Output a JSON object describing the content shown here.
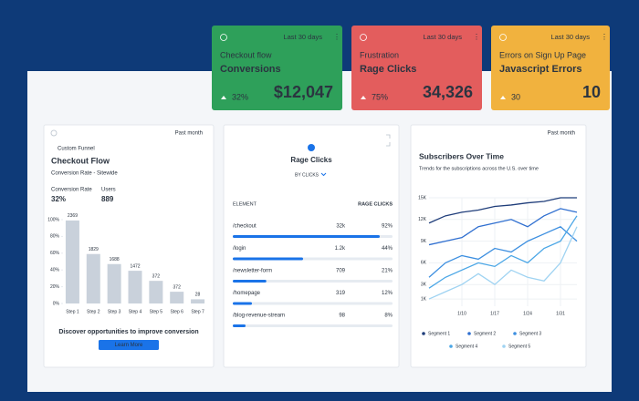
{
  "kpis": [
    {
      "period": "Last 30 days",
      "label": "Checkout flow",
      "title": "Conversions",
      "change": "32%",
      "value": "$12,047"
    },
    {
      "period": "Last 30 days",
      "label": "Frustration",
      "title": "Rage Clicks",
      "change": "75%",
      "value": "34,326"
    },
    {
      "period": "Last 30 days",
      "label": "Errors on Sign Up Page",
      "title": "Javascript Errors",
      "change": "30",
      "value": "10"
    }
  ],
  "funnel": {
    "period": "Past month",
    "tag": "Custom Funnel",
    "title": "Checkout Flow",
    "subtitle": "Conversion Rate - Sitewide",
    "metrics": [
      {
        "label": "Conversion Rate",
        "value": "32%"
      },
      {
        "label": "Users",
        "value": "889"
      }
    ],
    "chart": {
      "type": "bar",
      "categories": [
        "Step 1",
        "Step 2",
        "Step 3",
        "Step 4",
        "Step 5",
        "Step 6",
        "Step 7"
      ],
      "values": [
        99,
        59,
        47,
        39,
        27,
        14,
        5
      ],
      "bar_labels": [
        "2369",
        "1829",
        "1688",
        "1472",
        "372",
        "372",
        "28"
      ],
      "ylim": [
        0,
        100
      ],
      "yticks": [
        {
          "value": 0,
          "label": "0%"
        },
        {
          "value": 20,
          "label": "20%"
        },
        {
          "value": 40,
          "label": "40%"
        },
        {
          "value": 60,
          "label": "60%"
        },
        {
          "value": 80,
          "label": "80%"
        },
        {
          "value": 100,
          "label": "100%"
        }
      ],
      "color": "#c9d1db"
    },
    "cta": "Discover opportunities to improve conversion",
    "button": "Learn More"
  },
  "rage": {
    "title": "Rage Clicks",
    "sort": "BY CLICKS",
    "columns": [
      "ELEMENT",
      "RAGE CLICKS"
    ],
    "xlim": [
      0,
      100
    ],
    "color": "#1a73e8",
    "rows": [
      {
        "element": "/checkout",
        "clicks": "32k",
        "share": 92,
        "share_label": "92%"
      },
      {
        "element": "/login",
        "clicks": "1.2k",
        "share": 44,
        "share_label": "44%"
      },
      {
        "element": "/newsletter-form",
        "clicks": "709",
        "share": 21,
        "share_label": "21%"
      },
      {
        "element": "/homepage",
        "clicks": "319",
        "share": 12,
        "share_label": "12%"
      },
      {
        "element": "/blog-revenue-stream",
        "clicks": "98",
        "share": 8,
        "share_label": "8%"
      }
    ]
  },
  "subscribers": {
    "period": "Past month",
    "title": "Subscribers Over Time",
    "subtitle": "Trends for the subscriptions across the U.S. over time",
    "chart": {
      "type": "line",
      "categories": [
        null,
        null,
        "1/10",
        null,
        "1/17",
        null,
        "1/24",
        null,
        "1/31",
        null
      ],
      "ylim": [
        0,
        15000
      ],
      "yticks": [
        {
          "value": 1000,
          "label": "1K"
        },
        {
          "value": 3000,
          "label": "3K"
        },
        {
          "value": 6000,
          "label": "6K"
        },
        {
          "value": 9000,
          "label": "9K"
        },
        {
          "value": 12000,
          "label": "12K"
        },
        {
          "value": 15000,
          "label": "15K"
        }
      ],
      "grid": true,
      "series": [
        {
          "name": "Segment 1",
          "color": "#1f3d7a",
          "values": [
            11500,
            12500,
            13000,
            13300,
            13800,
            14000,
            14300,
            14500,
            15000,
            15000
          ]
        },
        {
          "name": "Segment 2",
          "color": "#2f6fd0",
          "values": [
            8500,
            9000,
            9500,
            11000,
            11500,
            12000,
            11000,
            12500,
            13500,
            13000
          ]
        },
        {
          "name": "Segment 3",
          "color": "#3d8fe0",
          "values": [
            4000,
            6000,
            7000,
            6500,
            8000,
            7500,
            9000,
            10000,
            11000,
            9000
          ]
        },
        {
          "name": "Segment 4",
          "color": "#4aa6e6",
          "values": [
            2500,
            4000,
            5000,
            6000,
            5500,
            7000,
            6000,
            8000,
            9000,
            12500
          ]
        },
        {
          "name": "Segment 5",
          "color": "#9fd3f2",
          "values": [
            1000,
            2000,
            3000,
            4500,
            3000,
            5000,
            4000,
            3500,
            6000,
            11000
          ]
        }
      ]
    }
  }
}
